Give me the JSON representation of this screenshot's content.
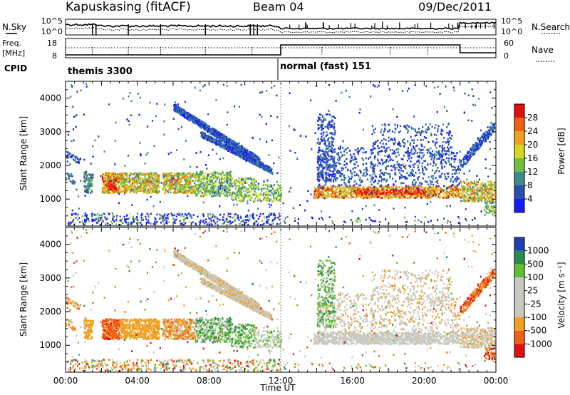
{
  "header": {
    "title": "Kapuskasing (fitACF)",
    "beam": "Beam 04",
    "date": "09/Dec/2011"
  },
  "panels": {
    "nsky_label": "N.Sky",
    "nsky_ticks": [
      "10^5",
      "10^0"
    ],
    "nsearch_label": "N.Search",
    "nsearch_ticks": [
      "10^5",
      "10^0"
    ],
    "freq_label_1": "Freq.",
    "freq_label_2": "[MHz]",
    "freq_ticks": [
      "18",
      "8"
    ],
    "nave_label": "Nave",
    "nave_ticks": [
      "60",
      "0"
    ],
    "cpid_label": "CPID",
    "cpid_modes": [
      {
        "text": "themis 3300",
        "start_hour": 0
      },
      {
        "text": "normal (fast) 151",
        "start_hour": 12
      }
    ]
  },
  "colors": {
    "power": [
      "#1a1aff",
      "#2b4fb0",
      "#3d8a8f",
      "#6fbf40",
      "#d8d820",
      "#f0a020",
      "#f06010",
      "#e01010"
    ],
    "velocity": [
      "#e01010",
      "#f06010",
      "#f0a020",
      "#c8c8c0",
      "#c8c8c0",
      "#60c030",
      "#2a8a50",
      "#2040b0"
    ]
  },
  "chart_data": [
    {
      "type": "heatmap",
      "name": "power",
      "ylabel": "Slant Range [km]",
      "y_ticks": [
        "1000",
        "2000",
        "3000",
        "4000"
      ],
      "ylim": [
        200,
        4500
      ],
      "x_ticks": [
        "00:00",
        "04:00",
        "08:00",
        "12:00",
        "16:00",
        "20:00",
        "00:00"
      ],
      "xlim": [
        0,
        24
      ],
      "colorbar_label": "Power [dB]",
      "colorbar_ticks": [
        "4",
        "8",
        "12",
        "16",
        "20",
        "24",
        "28"
      ],
      "colorbar_range": [
        0,
        32
      ]
    },
    {
      "type": "heatmap",
      "name": "velocity",
      "ylabel": "Slant Range [km]",
      "y_ticks": [
        "1000",
        "2000",
        "3000",
        "4000"
      ],
      "ylim": [
        200,
        4500
      ],
      "x_ticks": [
        "00:00",
        "04:00",
        "08:00",
        "12:00",
        "16:00",
        "20:00",
        "00:00"
      ],
      "xlim": [
        0,
        24
      ],
      "xlabel": "Time UT",
      "colorbar_label": "Velocity [m s⁻¹]",
      "colorbar_ticks": [
        "-1000",
        "-500",
        "-100",
        "-25",
        "25",
        "100",
        "500",
        "1000"
      ]
    }
  ]
}
